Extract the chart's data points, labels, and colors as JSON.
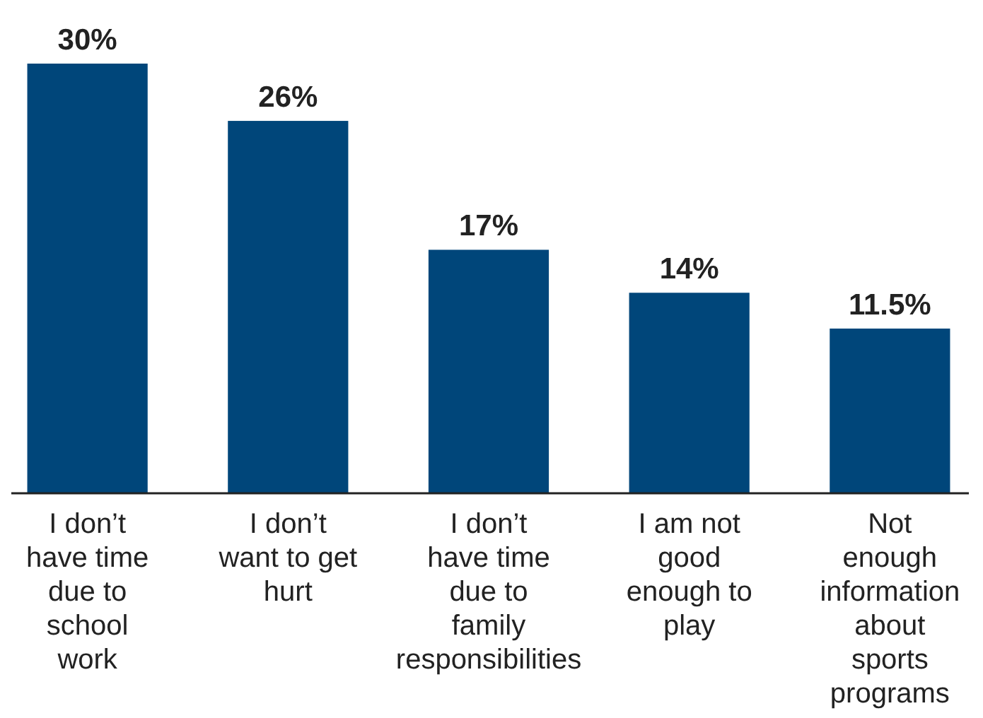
{
  "chart_data": {
    "type": "bar",
    "categories": [
      "I don’t have time due to school work",
      "I don’t want to get hurt",
      "I don’t have time due to family responsibilities",
      "I am not good enough to play",
      "Not enough information about sports programs"
    ],
    "values": [
      30,
      26,
      17,
      14,
      11.5
    ],
    "value_labels": [
      "30%",
      "26%",
      "17%",
      "14%",
      "11.5%"
    ],
    "color": "#00467a"
  }
}
